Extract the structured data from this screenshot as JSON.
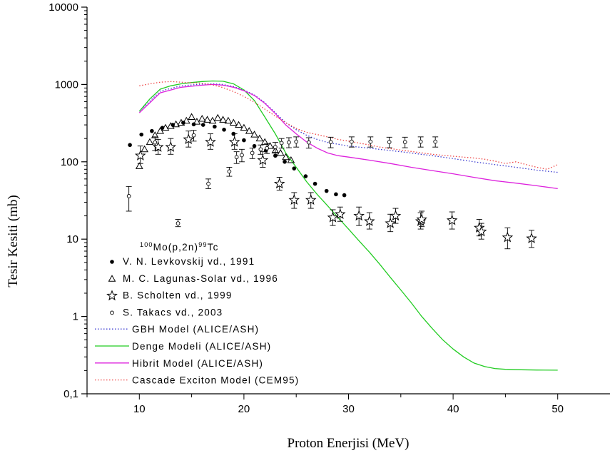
{
  "chart_data": {
    "type": "scatter",
    "xlabel": "Proton Enerjisi (MeV)",
    "ylabel": "Tesir Kesiti (mb)",
    "xlim": [
      5,
      55
    ],
    "ylim": [
      0.1,
      10000
    ],
    "yscale": "log",
    "grid": false,
    "legend_position": "lower-left",
    "x_ticks": [
      10,
      20,
      30,
      40,
      50
    ],
    "y_ticks": [
      {
        "value": 0.1,
        "label": "0,1"
      },
      {
        "value": 1,
        "label": "1"
      },
      {
        "value": 10,
        "label": "10"
      },
      {
        "value": 100,
        "label": "100"
      },
      {
        "value": 1000,
        "label": "1000"
      },
      {
        "value": 10000,
        "label": "10000"
      }
    ],
    "reaction": {
      "a": "100",
      "b": "Mo(p,2n)",
      "c": "99",
      "d": "Tc"
    },
    "series": [
      {
        "name": "V. N. Levkovskij vd., 1991",
        "kind": "markers",
        "marker": "filled-circle",
        "color": "#000000",
        "points": [
          [
            9.1,
            165
          ],
          [
            10.2,
            225
          ],
          [
            11.2,
            250
          ],
          [
            12.2,
            275
          ],
          [
            13.2,
            300
          ],
          [
            14.2,
            320
          ],
          [
            15.2,
            305
          ],
          [
            16.1,
            300
          ],
          [
            17.2,
            285
          ],
          [
            18.1,
            260
          ],
          [
            19.0,
            230
          ],
          [
            20.0,
            190
          ],
          [
            21.0,
            160
          ],
          [
            22.1,
            140
          ],
          [
            23.0,
            120
          ],
          [
            23.9,
            100
          ],
          [
            24.8,
            82
          ],
          [
            25.9,
            65
          ],
          [
            26.8,
            52
          ],
          [
            27.9,
            42
          ],
          [
            28.8,
            38
          ],
          [
            29.6,
            37
          ]
        ]
      },
      {
        "name": "M. C. Lagunas-Solar vd., 1996",
        "kind": "markers",
        "marker": "open-triangle",
        "color": "#000000",
        "points": [
          [
            10.0,
            88
          ],
          [
            10.5,
            145
          ],
          [
            11.0,
            180
          ],
          [
            11.5,
            220
          ],
          [
            12.0,
            250
          ],
          [
            12.5,
            275
          ],
          [
            13.0,
            290
          ],
          [
            13.5,
            305
          ],
          [
            14.0,
            320
          ],
          [
            14.5,
            340
          ],
          [
            15.0,
            380
          ],
          [
            15.5,
            330
          ],
          [
            16.0,
            360
          ],
          [
            16.5,
            350
          ],
          [
            17.0,
            340
          ],
          [
            17.5,
            370
          ],
          [
            18.0,
            350
          ],
          [
            18.5,
            340
          ],
          [
            19.0,
            320
          ],
          [
            19.5,
            300
          ],
          [
            20.0,
            275
          ],
          [
            20.5,
            250
          ],
          [
            21.0,
            225
          ],
          [
            21.5,
            200
          ],
          [
            22.0,
            180
          ],
          [
            22.5,
            160
          ],
          [
            23.0,
            140
          ],
          [
            23.5,
            130
          ],
          [
            24.0,
            115
          ],
          [
            24.5,
            105
          ]
        ]
      },
      {
        "name": "B. Scholten vd., 1999",
        "kind": "markers",
        "marker": "open-star",
        "color": "#000000",
        "points": [
          [
            10.1,
            120
          ],
          [
            11.8,
            155
          ],
          [
            13.0,
            155
          ],
          [
            14.7,
            195
          ],
          [
            16.8,
            180
          ],
          [
            19.1,
            180
          ],
          [
            21.8,
            105
          ],
          [
            23.4,
            52
          ],
          [
            24.8,
            32
          ],
          [
            26.4,
            32
          ],
          [
            28.5,
            19
          ],
          [
            29.2,
            21
          ],
          [
            31.0,
            20
          ],
          [
            32.0,
            17
          ],
          [
            34.0,
            16
          ],
          [
            34.5,
            20
          ],
          [
            36.9,
            17
          ],
          [
            37.0,
            18
          ],
          [
            39.9,
            17.5
          ],
          [
            42.5,
            14
          ],
          [
            42.7,
            12.5
          ],
          [
            45.2,
            10.5
          ],
          [
            47.5,
            10.2
          ]
        ],
        "error_bars": [
          [
            10.1,
            95,
            160
          ],
          [
            11.8,
            125,
            195
          ],
          [
            13.0,
            125,
            200
          ],
          [
            14.7,
            155,
            250
          ],
          [
            16.8,
            145,
            230
          ],
          [
            19.1,
            145,
            230
          ],
          [
            21.8,
            85,
            135
          ],
          [
            23.4,
            43,
            63
          ],
          [
            24.8,
            25,
            40
          ],
          [
            26.4,
            25,
            40
          ],
          [
            28.5,
            15,
            24
          ],
          [
            29.2,
            17,
            26
          ],
          [
            31.0,
            15,
            26
          ],
          [
            32.0,
            13.5,
            22
          ],
          [
            34.0,
            12.5,
            21
          ],
          [
            34.5,
            16,
            25
          ],
          [
            36.9,
            13.5,
            22
          ],
          [
            37.0,
            14.5,
            23
          ],
          [
            39.9,
            13.5,
            22.5
          ],
          [
            42.5,
            11,
            18
          ],
          [
            42.7,
            10,
            16
          ],
          [
            45.2,
            7.5,
            14
          ],
          [
            47.5,
            7.8,
            13
          ]
        ]
      },
      {
        "name": "S. Takacs vd., 2003",
        "kind": "markers",
        "marker": "open-circle",
        "color": "#000000",
        "points": [
          [
            9.0,
            36
          ],
          [
            11.5,
            178
          ],
          [
            13.7,
            16
          ],
          [
            15.2,
            220
          ],
          [
            16.6,
            52
          ],
          [
            18.6,
            75
          ],
          [
            19.3,
            115
          ],
          [
            19.8,
            122
          ],
          [
            20.8,
            130
          ],
          [
            21.6,
            145
          ],
          [
            22.2,
            150
          ],
          [
            23.0,
            155
          ],
          [
            23.6,
            175
          ],
          [
            24.3,
            178
          ],
          [
            25.0,
            182
          ],
          [
            26.2,
            178
          ],
          [
            28.3,
            180
          ],
          [
            30.3,
            182
          ],
          [
            32.1,
            182
          ],
          [
            33.9,
            180
          ],
          [
            35.4,
            180
          ],
          [
            36.9,
            182
          ],
          [
            38.3,
            182
          ]
        ],
        "error_bars": [
          [
            9.0,
            23,
            48
          ],
          [
            11.5,
            140,
            210
          ],
          [
            13.7,
            14.5,
            18
          ],
          [
            15.2,
            185,
            255
          ],
          [
            16.6,
            45,
            60
          ],
          [
            18.6,
            65,
            85
          ],
          [
            19.3,
            95,
            135
          ],
          [
            19.8,
            100,
            145
          ],
          [
            20.8,
            110,
            150
          ],
          [
            21.6,
            125,
            165
          ],
          [
            22.2,
            128,
            172
          ],
          [
            23.0,
            132,
            178
          ],
          [
            23.6,
            150,
            200
          ],
          [
            24.3,
            152,
            205
          ],
          [
            25.0,
            155,
            210
          ],
          [
            26.2,
            150,
            205
          ],
          [
            28.3,
            152,
            208
          ],
          [
            30.3,
            155,
            210
          ],
          [
            32.1,
            155,
            210
          ],
          [
            33.9,
            152,
            208
          ],
          [
            35.4,
            152,
            208
          ],
          [
            36.9,
            155,
            210
          ],
          [
            38.3,
            155,
            210
          ]
        ]
      },
      {
        "name": "GBH Model (ALICE/ASH)",
        "kind": "line",
        "dash": "dotted",
        "color": "#3b3bd0",
        "points": [
          [
            10,
            450
          ],
          [
            12,
            820
          ],
          [
            14,
            960
          ],
          [
            16,
            1010
          ],
          [
            17,
            1020
          ],
          [
            18,
            1000
          ],
          [
            19,
            940
          ],
          [
            20,
            850
          ],
          [
            21,
            730
          ],
          [
            22,
            580
          ],
          [
            23,
            430
          ],
          [
            24,
            320
          ],
          [
            25,
            260
          ],
          [
            26,
            220
          ],
          [
            27,
            195
          ],
          [
            28,
            178
          ],
          [
            30,
            160
          ],
          [
            32,
            150
          ],
          [
            35,
            135
          ],
          [
            38,
            120
          ],
          [
            40,
            110
          ],
          [
            42,
            100
          ],
          [
            44,
            92
          ],
          [
            46,
            85
          ],
          [
            48,
            78
          ],
          [
            50,
            73
          ]
        ]
      },
      {
        "name": "Denge Modeli (ALICE/ASH)",
        "kind": "line",
        "dash": "solid",
        "color": "#22cc22",
        "points": [
          [
            10,
            450
          ],
          [
            11,
            650
          ],
          [
            12,
            870
          ],
          [
            13,
            960
          ],
          [
            14,
            1020
          ],
          [
            15,
            1060
          ],
          [
            16,
            1090
          ],
          [
            17,
            1110
          ],
          [
            18,
            1100
          ],
          [
            19,
            1020
          ],
          [
            20,
            850
          ],
          [
            21,
            620
          ],
          [
            22,
            380
          ],
          [
            23,
            230
          ],
          [
            24,
            130
          ],
          [
            25,
            85
          ],
          [
            26,
            55
          ],
          [
            27,
            38
          ],
          [
            28,
            27
          ],
          [
            29,
            19
          ],
          [
            30,
            13.5
          ],
          [
            31,
            9.5
          ],
          [
            32,
            6.8
          ],
          [
            33,
            4.7
          ],
          [
            34,
            3.2
          ],
          [
            35,
            2.2
          ],
          [
            36,
            1.5
          ],
          [
            37,
            1.0
          ],
          [
            38,
            0.7
          ],
          [
            39,
            0.5
          ],
          [
            40,
            0.38
          ],
          [
            41,
            0.3
          ],
          [
            42,
            0.25
          ],
          [
            43,
            0.225
          ],
          [
            44,
            0.212
          ],
          [
            45,
            0.207
          ],
          [
            46,
            0.205
          ],
          [
            48,
            0.203
          ],
          [
            50,
            0.202
          ]
        ]
      },
      {
        "name": "Hibrit Model (ALICE/ASH)",
        "kind": "line",
        "dash": "solid",
        "color": "#dd22dd",
        "points": [
          [
            10,
            430
          ],
          [
            12,
            780
          ],
          [
            14,
            920
          ],
          [
            16,
            980
          ],
          [
            17,
            1000
          ],
          [
            18,
            980
          ],
          [
            19,
            920
          ],
          [
            20,
            830
          ],
          [
            21,
            720
          ],
          [
            22,
            570
          ],
          [
            23,
            420
          ],
          [
            24,
            300
          ],
          [
            25,
            230
          ],
          [
            26,
            180
          ],
          [
            27,
            150
          ],
          [
            28,
            130
          ],
          [
            29,
            120
          ],
          [
            30,
            115
          ],
          [
            32,
            105
          ],
          [
            34,
            95
          ],
          [
            36,
            85
          ],
          [
            38,
            77
          ],
          [
            40,
            70
          ],
          [
            42,
            63
          ],
          [
            44,
            57
          ],
          [
            46,
            53
          ],
          [
            48,
            49
          ],
          [
            50,
            45
          ]
        ]
      },
      {
        "name": "Cascade Exciton Model (CEM95)",
        "kind": "line",
        "dash": "dotted",
        "color": "#ee4444",
        "points": [
          [
            10,
            960
          ],
          [
            11,
            1020
          ],
          [
            12,
            1070
          ],
          [
            13,
            1090
          ],
          [
            14,
            1070
          ],
          [
            15,
            1050
          ],
          [
            16,
            1040
          ],
          [
            17,
            990
          ],
          [
            18,
            910
          ],
          [
            19,
            810
          ],
          [
            20,
            700
          ],
          [
            21,
            590
          ],
          [
            22,
            480
          ],
          [
            23,
            390
          ],
          [
            24,
            320
          ],
          [
            25,
            270
          ],
          [
            26,
            240
          ],
          [
            27,
            225
          ],
          [
            28,
            210
          ],
          [
            29,
            195
          ],
          [
            30,
            185
          ],
          [
            31,
            175
          ],
          [
            32,
            165
          ],
          [
            33,
            155
          ],
          [
            34,
            148
          ],
          [
            35,
            142
          ],
          [
            36,
            136
          ],
          [
            38,
            125
          ],
          [
            40,
            118
          ],
          [
            42,
            112
          ],
          [
            43,
            108
          ],
          [
            44,
            102
          ],
          [
            45,
            95
          ],
          [
            46,
            100
          ],
          [
            47,
            92
          ],
          [
            48,
            85
          ],
          [
            49,
            80
          ],
          [
            50,
            92
          ]
        ]
      }
    ]
  }
}
